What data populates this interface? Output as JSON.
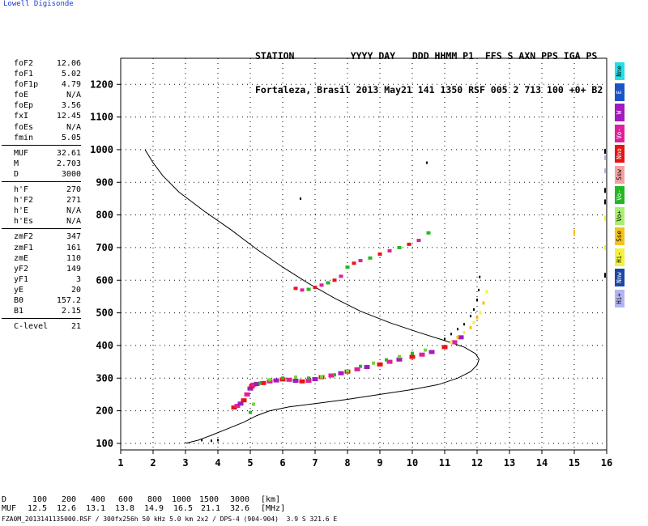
{
  "brand": "Lowell Digisonde",
  "header": {
    "line1": "STATION          YYYY DAY   DDD HHMM P1  FFS S AXN PPS IGA PS",
    "line2": "Fortaleza, Brasil 2013 May21 141 1350 RSF 005 2 713 100 +0+ B2"
  },
  "params": {
    "group1": [
      {
        "k": "foF2",
        "v": "12.06"
      },
      {
        "k": "foF1",
        "v": "5.02"
      },
      {
        "k": "foF1p",
        "v": "4.79"
      },
      {
        "k": "foE",
        "v": "N/A"
      },
      {
        "k": "foEp",
        "v": "3.56"
      },
      {
        "k": "fxI",
        "v": "12.45"
      },
      {
        "k": "foEs",
        "v": "N/A"
      },
      {
        "k": "fmin",
        "v": "5.05"
      }
    ],
    "group2": [
      {
        "k": "MUF",
        "v": "32.61"
      },
      {
        "k": "M",
        "v": "2.703"
      },
      {
        "k": "D",
        "v": "3000"
      }
    ],
    "group3": [
      {
        "k": "h'F",
        "v": "270"
      },
      {
        "k": "h'F2",
        "v": "271"
      },
      {
        "k": "h'E",
        "v": "N/A"
      },
      {
        "k": "h'Es",
        "v": "N/A"
      }
    ],
    "group4": [
      {
        "k": "zmF2",
        "v": "347"
      },
      {
        "k": "zmF1",
        "v": "161"
      },
      {
        "k": "zmE",
        "v": "110"
      },
      {
        "k": "yF2",
        "v": "149"
      },
      {
        "k": "yF1",
        "v": "3"
      },
      {
        "k": "yE",
        "v": "20"
      },
      {
        "k": "B0",
        "v": "157.2"
      },
      {
        "k": "B1",
        "v": "2.15"
      }
    ],
    "group5": [
      {
        "k": "C-level",
        "v": "21"
      }
    ]
  },
  "legend": [
    {
      "label": "Nne",
      "color": "#22e0e8"
    },
    {
      "label": "E",
      "color": "#1a55c8"
    },
    {
      "label": "W",
      "color": "#a21ac0"
    },
    {
      "label": "Vo-",
      "color": "#e0209a"
    },
    {
      "label": "Nno",
      "color": "#e81414"
    },
    {
      "label": "Ssw",
      "color": "#f4a0a0"
    },
    {
      "label": "Vo-",
      "color": "#23b823"
    },
    {
      "label": "Vo+",
      "color": "#a8f070"
    },
    {
      "label": "Sse",
      "color": "#f2c21e"
    },
    {
      "label": "Hi-",
      "color": "#f2f23c"
    },
    {
      "label": "Nnw",
      "color": "#1a48a8"
    },
    {
      "label": "Hi+",
      "color": "#b4b4f4"
    }
  ],
  "muf_table": {
    "d_label": "D",
    "d_values": [
      "100",
      "200",
      "400",
      "600",
      "800",
      "1000",
      "1500",
      "3000"
    ],
    "d_unit": "[km]",
    "muf_label": "MUF",
    "muf_values": [
      "12.5",
      "12.6",
      "13.1",
      "13.8",
      "14.9",
      "16.5",
      "21.1",
      "32.6"
    ],
    "muf_unit": "[MHz]"
  },
  "footer": "FZA0M_2013141135000.RSF / 300fx256h 50 kHz 5.0 km 2x2 / DPS-4 (904-904)  3.9 S 321.6 E",
  "chart_data": {
    "type": "scatter",
    "xlim": [
      1,
      16
    ],
    "ylim": [
      80,
      1280
    ],
    "x_ticks": [
      1,
      2,
      3,
      4,
      5,
      6,
      7,
      8,
      9,
      10,
      11,
      12,
      13,
      14,
      15,
      16
    ],
    "y_ticks": [
      100,
      200,
      300,
      400,
      500,
      600,
      700,
      800,
      900,
      1000,
      1100,
      1200
    ],
    "grid": true,
    "profile": {
      "x": [
        3.0,
        3.4,
        3.8,
        4.3,
        4.8,
        5.2,
        5.6,
        6.2,
        7.0,
        8.0,
        9.0,
        10.0,
        10.8,
        11.4,
        11.8,
        12.0,
        12.06,
        11.95,
        11.6,
        11.0,
        10.2,
        9.3,
        8.4,
        7.6,
        6.8,
        6.0,
        5.2,
        4.4,
        3.6,
        2.8,
        2.3,
        2.0,
        1.75
      ],
      "y": [
        100,
        110,
        125,
        145,
        165,
        185,
        200,
        212,
        222,
        235,
        250,
        265,
        280,
        300,
        320,
        340,
        358,
        375,
        395,
        415,
        440,
        470,
        505,
        545,
        590,
        640,
        695,
        755,
        810,
        870,
        920,
        960,
        1000
      ]
    },
    "ordinary_trace": {
      "x": [
        4.5,
        4.6,
        4.7,
        4.8,
        4.9,
        5.0,
        5.05,
        5.1,
        5.2,
        5.4,
        5.6,
        5.8,
        6.0,
        6.2,
        6.4,
        6.6,
        6.8,
        7.0,
        7.2,
        7.5,
        7.8,
        8.0,
        8.3,
        8.6,
        9.0,
        9.3,
        9.6,
        10.0,
        10.3,
        10.6,
        11.0,
        11.3,
        11.5
      ],
      "y": [
        210,
        215,
        222,
        232,
        250,
        268,
        275,
        280,
        282,
        285,
        290,
        293,
        296,
        295,
        292,
        290,
        292,
        297,
        303,
        308,
        315,
        320,
        327,
        334,
        342,
        350,
        357,
        365,
        372,
        380,
        395,
        410,
        425
      ]
    },
    "ordinary_green": {
      "x": [
        5.0,
        5.1,
        5.3,
        5.6,
        6.0,
        6.4,
        6.8,
        7.2,
        7.6,
        8.0,
        8.4,
        8.8,
        9.2,
        9.6,
        10.0,
        10.4
      ],
      "y": [
        195,
        220,
        285,
        295,
        300,
        303,
        300,
        304,
        310,
        322,
        336,
        346,
        356,
        366,
        376,
        386
      ]
    },
    "extraordinary_trace": {
      "x": [
        11.2,
        11.4,
        11.6,
        11.8,
        11.9,
        12.0,
        12.1,
        12.2,
        12.3
      ],
      "y": [
        410,
        425,
        440,
        455,
        470,
        485,
        500,
        530,
        565
      ]
    },
    "multihop_trace": {
      "x": [
        6.4,
        6.6,
        6.8,
        7.0,
        7.2,
        7.4,
        7.6,
        7.8,
        8.0,
        8.2,
        8.4,
        8.7,
        9.0,
        9.3,
        9.6,
        9.9,
        10.2,
        10.5
      ],
      "y": [
        575,
        570,
        572,
        578,
        585,
        592,
        600,
        612,
        640,
        652,
        660,
        668,
        680,
        690,
        700,
        710,
        722,
        745
      ]
    },
    "dots_black": {
      "x": [
        3.5,
        3.8,
        4.0,
        11.0,
        11.2,
        11.4,
        11.6,
        11.8,
        11.9,
        12.0,
        12.05,
        12.08,
        10.45,
        6.55
      ],
      "y": [
        110,
        108,
        110,
        420,
        435,
        450,
        465,
        490,
        510,
        540,
        570,
        610,
        960,
        850
      ]
    }
  }
}
